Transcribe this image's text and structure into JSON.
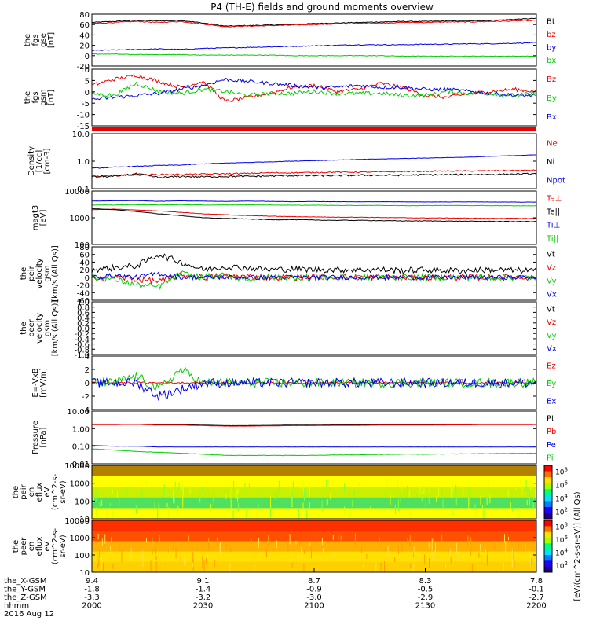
{
  "title": "P4 (TH-E) fields and ground moments overview",
  "colors": {
    "black": "#000000",
    "red": "#ee0000",
    "green": "#00cc00",
    "blue": "#0000ee"
  },
  "chart_data": [
    {
      "type": "line",
      "ylabel": [
        "the",
        "fgs",
        "gse",
        "[nT]"
      ],
      "yticks": [
        "80",
        "60",
        "40",
        "20",
        "0",
        "-20"
      ],
      "ylim": [
        -20,
        80
      ],
      "series": [
        {
          "name": "Bt",
          "color": "black",
          "values": [
            64,
            66,
            68,
            67,
            68,
            63,
            57,
            58,
            59,
            60,
            62,
            63,
            64,
            65,
            66,
            66,
            67,
            67,
            68,
            70,
            72
          ],
          "noise": 0.8
        },
        {
          "name": "bz",
          "color": "red",
          "values": [
            62,
            64,
            66,
            64,
            66,
            61,
            56,
            57,
            58,
            59,
            60,
            61,
            62,
            63,
            64,
            64,
            65,
            65,
            66,
            67,
            68
          ],
          "noise": 0.8
        },
        {
          "name": "by",
          "color": "blue",
          "values": [
            10,
            11,
            12,
            13,
            12,
            14,
            15,
            16,
            17,
            18,
            19,
            20,
            21,
            21,
            21,
            22,
            22,
            23,
            23,
            24,
            25
          ],
          "noise": 0.8
        },
        {
          "name": "bx",
          "color": "green",
          "values": [
            3,
            3,
            2,
            2,
            2,
            1,
            1,
            1,
            1,
            0,
            0,
            0,
            0,
            0,
            -1,
            -1,
            -1,
            -1,
            -1,
            -1,
            -1
          ],
          "noise": 0.6
        }
      ]
    },
    {
      "type": "line",
      "ylabel": [
        "the",
        "fgs",
        "gsm",
        "[nT]"
      ],
      "yticks": [
        "10",
        "5",
        "0",
        "-5",
        "-10",
        "-15"
      ],
      "ylim": [
        -17,
        11
      ],
      "series": [
        {
          "name": "Bz",
          "color": "red",
          "values": [
            3,
            6,
            8,
            5,
            2,
            5,
            -5,
            -3,
            -1,
            2,
            3,
            0,
            1,
            4,
            2,
            -2,
            -3,
            -1,
            0,
            1,
            0
          ],
          "noise": 0.9
        },
        {
          "name": "By",
          "color": "green",
          "values": [
            -1,
            -2,
            4,
            0,
            -1,
            1,
            0,
            -2,
            -1,
            -1,
            0,
            -1,
            -1,
            -1,
            -2,
            -2,
            0,
            -1,
            -1,
            -2,
            -1
          ],
          "noise": 1.0
        },
        {
          "name": "Bx",
          "color": "blue",
          "values": [
            -4,
            -3,
            -2,
            -1,
            1,
            3,
            6,
            5,
            4,
            3,
            2,
            2,
            3,
            2,
            2,
            1,
            1,
            0,
            -1,
            -2,
            -2
          ],
          "noise": 0.9
        }
      ]
    },
    {
      "type": "line",
      "yscale": "log",
      "ylabel": [
        "Density",
        "[1/cc]",
        "[cm-3]"
      ],
      "yticks": [
        "10.0",
        "1.0",
        "0.1"
      ],
      "ylim": [
        0.1,
        10.0
      ],
      "series": [
        {
          "name": "Ne",
          "color": "red",
          "values": [
            0.28,
            0.3,
            0.32,
            0.33,
            0.33,
            0.34,
            0.35,
            0.36,
            0.38,
            0.38,
            0.39,
            0.4,
            0.4,
            0.41,
            0.42,
            0.43,
            0.44,
            0.44,
            0.45,
            0.46,
            0.47
          ],
          "noise": 0.02
        },
        {
          "name": "Ni",
          "color": "black",
          "values": [
            0.27,
            0.28,
            0.35,
            0.25,
            0.28,
            0.27,
            0.28,
            0.28,
            0.29,
            0.3,
            0.3,
            0.3,
            0.31,
            0.31,
            0.31,
            0.32,
            0.32,
            0.33,
            0.33,
            0.34,
            0.35
          ],
          "noise": 0.02
        },
        {
          "name": "Npot",
          "color": "blue",
          "values": [
            0.55,
            0.6,
            0.65,
            0.7,
            0.72,
            0.8,
            0.85,
            0.9,
            0.95,
            1.0,
            1.05,
            1.1,
            1.15,
            1.2,
            1.25,
            1.3,
            1.35,
            1.4,
            1.5,
            1.6,
            1.7
          ],
          "noise": 0.02
        }
      ]
    },
    {
      "type": "line",
      "yscale": "log",
      "ylabel": [
        "magt3",
        "[eV]"
      ],
      "yticks": [
        "10000",
        "1000",
        "100"
      ],
      "ylim": [
        100,
        10000
      ],
      "series": [
        {
          "name": "Te⊥",
          "color": "red",
          "values": [
            2000,
            2100,
            1950,
            1800,
            1600,
            1400,
            1300,
            1200,
            1150,
            1100,
            1080,
            1050,
            1050,
            1020,
            1000,
            980,
            980,
            960,
            950,
            950,
            940
          ],
          "noise": 20
        },
        {
          "name": "Te||",
          "color": "black",
          "values": [
            2200,
            2000,
            1700,
            1400,
            1200,
            1000,
            950,
            900,
            850,
            850,
            820,
            800,
            800,
            780,
            760,
            760,
            750,
            740,
            730,
            720,
            720
          ],
          "noise": 20
        },
        {
          "name": "Ti⊥",
          "color": "blue",
          "values": [
            4200,
            4300,
            4400,
            4100,
            4300,
            4200,
            4100,
            4200,
            4100,
            4000,
            4050,
            4000,
            3950,
            4000,
            3950,
            3900,
            3900,
            3950,
            3900,
            3850,
            3850
          ],
          "noise": 40
        },
        {
          "name": "Ti||",
          "color": "green",
          "values": [
            3000,
            3000,
            3100,
            3000,
            3100,
            3000,
            3000,
            3050,
            3000,
            2950,
            2950,
            2900,
            2900,
            2900,
            2850,
            2850,
            2900,
            2850,
            2850,
            2800,
            2800
          ],
          "noise": 40
        }
      ]
    },
    {
      "type": "line",
      "ylabel": [
        "the",
        "peir",
        "velocity",
        "gsm",
        "[km/s (All Qs)]"
      ],
      "yticks": [
        "80",
        "60",
        "40",
        "20",
        "0",
        "-20",
        "-40",
        "-60"
      ],
      "ylim": [
        -60,
        80
      ],
      "series": [
        {
          "name": "Vt",
          "color": "black",
          "values": [
            20,
            25,
            30,
            60,
            40,
            20,
            28,
            25,
            20,
            22,
            20,
            20,
            20,
            20,
            18,
            20,
            18,
            18,
            20,
            18,
            18
          ],
          "noise": 8
        },
        {
          "name": "Vz",
          "color": "red",
          "values": [
            0,
            2,
            -5,
            -10,
            5,
            0,
            3,
            2,
            0,
            0,
            0,
            0,
            0,
            0,
            0,
            0,
            0,
            0,
            0,
            0,
            0
          ],
          "noise": 8
        },
        {
          "name": "Vy",
          "color": "green",
          "values": [
            0,
            -5,
            -20,
            -25,
            10,
            0,
            5,
            -5,
            0,
            0,
            0,
            0,
            0,
            0,
            0,
            0,
            0,
            0,
            0,
            0,
            0
          ],
          "noise": 8
        },
        {
          "name": "Vx",
          "color": "blue",
          "values": [
            0,
            5,
            0,
            10,
            0,
            0,
            0,
            0,
            0,
            0,
            0,
            0,
            0,
            0,
            0,
            0,
            0,
            0,
            0,
            0,
            0
          ],
          "noise": 6
        }
      ]
    },
    {
      "type": "line",
      "ylabel": [
        "the",
        "peer",
        "velocity",
        "gsm",
        "[km/s (All Qs)]"
      ],
      "yticks": [
        "1.0",
        "0.8",
        "0.6",
        "0.4",
        "0.2",
        "0.0",
        "-0.2",
        "-0.4",
        "-0.6",
        "-0.8",
        "-1.0"
      ],
      "ylim": [
        -1.0,
        1.0
      ],
      "series": [
        {
          "name": "Vt",
          "color": "black",
          "values": []
        },
        {
          "name": "Vz",
          "color": "red",
          "values": []
        },
        {
          "name": "Vy",
          "color": "green",
          "values": []
        },
        {
          "name": "Vx",
          "color": "blue",
          "values": []
        }
      ]
    },
    {
      "type": "line",
      "ylabel": [
        "E=-VxB",
        "[mV/m]"
      ],
      "yticks": [
        "4",
        "2",
        "0",
        "-2",
        "-4"
      ],
      "ylim": [
        -4,
        4
      ],
      "series": [
        {
          "name": "Ez",
          "color": "red",
          "values": [
            0,
            0,
            0,
            0,
            0,
            0,
            0,
            0,
            0,
            0,
            0,
            0,
            0,
            0,
            0,
            0,
            0,
            0,
            0,
            0,
            0
          ],
          "noise": 0.15
        },
        {
          "name": "Ey",
          "color": "green",
          "values": [
            0,
            0,
            1,
            -1,
            2,
            0,
            0,
            0,
            0,
            0,
            0,
            0,
            0,
            0,
            0,
            0,
            0,
            0,
            0,
            0,
            0
          ],
          "noise": 0.7
        },
        {
          "name": "Ex",
          "color": "blue",
          "values": [
            0,
            0,
            0,
            -2,
            -1,
            0,
            0,
            0,
            0,
            0,
            0,
            0,
            0,
            0,
            0,
            0,
            0,
            0,
            0,
            0,
            0
          ],
          "noise": 0.7
        }
      ]
    },
    {
      "type": "line",
      "yscale": "log",
      "ylabel": [
        "Pressure",
        "[nPa]"
      ],
      "yticks": [
        "10.00",
        "1.00",
        "0.10",
        "0.01"
      ],
      "ylim": [
        0.01,
        10.0
      ],
      "series": [
        {
          "name": "Pt",
          "color": "black",
          "values": [
            1.8,
            1.8,
            1.8,
            1.7,
            1.7,
            1.6,
            1.5,
            1.5,
            1.55,
            1.6,
            1.6,
            1.65,
            1.65,
            1.7,
            1.7,
            1.7,
            1.75,
            1.75,
            1.8,
            1.8,
            1.8
          ],
          "noise": 0.01
        },
        {
          "name": "Pb",
          "color": "red",
          "values": [
            1.7,
            1.7,
            1.75,
            1.6,
            1.6,
            1.5,
            1.4,
            1.4,
            1.45,
            1.5,
            1.5,
            1.55,
            1.55,
            1.6,
            1.6,
            1.6,
            1.65,
            1.65,
            1.7,
            1.7,
            1.7
          ],
          "noise": 0.01
        },
        {
          "name": "Pe",
          "color": "blue",
          "values": [
            0.11,
            0.1,
            0.1,
            0.09,
            0.09,
            0.09,
            0.09,
            0.09,
            0.09,
            0.09,
            0.09,
            0.09,
            0.09,
            0.09,
            0.09,
            0.09,
            0.09,
            0.09,
            0.09,
            0.09,
            0.09
          ],
          "noise": 0.001
        },
        {
          "name": "Pi",
          "color": "green",
          "values": [
            0.07,
            0.06,
            0.05,
            0.045,
            0.04,
            0.035,
            0.03,
            0.03,
            0.03,
            0.03,
            0.03,
            0.032,
            0.032,
            0.034,
            0.035,
            0.035,
            0.036,
            0.037,
            0.038,
            0.039,
            0.04
          ],
          "noise": 0.001
        }
      ]
    },
    {
      "type": "heatmap",
      "ylabel": [
        "the",
        "peir",
        "en",
        "eflux",
        "eV",
        "(cm^2-s-",
        "sr-eV)"
      ],
      "yticks": [
        "10000",
        "1000",
        "100",
        "10"
      ],
      "ylim": [
        5,
        20000
      ],
      "colorbar": [
        "10^8",
        "10^6",
        "10^4",
        "10^2"
      ],
      "bands": [
        "#b38000",
        "#ffff00",
        "#c8f000",
        "#50e060",
        "#ffff00"
      ]
    },
    {
      "type": "heatmap",
      "ylabel": [
        "the",
        "peer",
        "en",
        "eflux",
        "eV",
        "(cm^2-s-",
        "sr-eV)"
      ],
      "yticks": [
        "10000",
        "1000",
        "100",
        "10"
      ],
      "ylim": [
        5,
        20000
      ],
      "colorbar": [
        "10^8",
        "10^6",
        "10^4",
        "10^2"
      ],
      "bands": [
        "#ff3000",
        "#ff5000",
        "#ffb000",
        "#ffe000",
        "#ffd000"
      ]
    }
  ],
  "colorbar_label": "[eV/(cm^2-s-sr-eV)]  (All Qs)",
  "x_axis": {
    "row_labels": [
      "the_X-GSM",
      "the_Y-GSM",
      "the_Z-GSM",
      "hhmm",
      "2016 Aug 12"
    ],
    "columns": [
      {
        "vals": [
          "9.4",
          "-1.8",
          "-3.3",
          "2000"
        ]
      },
      {
        "vals": [
          "9.1",
          "-1.4",
          "-3.2",
          "2030"
        ]
      },
      {
        "vals": [
          "8.7",
          "-0.9",
          "-3.0",
          "2100"
        ]
      },
      {
        "vals": [
          "8.3",
          "-0.5",
          "-2.9",
          "2130"
        ]
      },
      {
        "vals": [
          "7.8",
          "-0.1",
          "-2.7",
          "2200"
        ]
      }
    ]
  }
}
